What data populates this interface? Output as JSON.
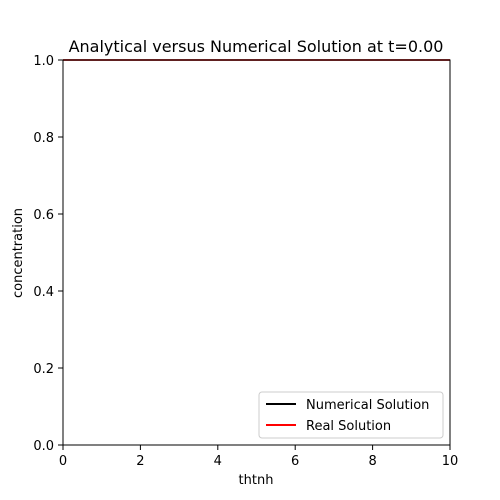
{
  "chart_data": {
    "type": "line",
    "title": "Analytical versus Numerical Solution at t=0.00",
    "xlabel": "thtnh",
    "ylabel": "concentration",
    "xlim": [
      0,
      10
    ],
    "ylim": [
      0,
      1
    ],
    "xticks": [
      0,
      2,
      4,
      6,
      8,
      10
    ],
    "xtick_labels": [
      "0",
      "2",
      "4",
      "6",
      "8",
      "10"
    ],
    "yticks": [
      0,
      0.2,
      0.4,
      0.6,
      0.8,
      1.0
    ],
    "ytick_labels": [
      "0.0",
      "0.2",
      "0.4",
      "0.6",
      "0.8",
      "1.0"
    ],
    "grid": false,
    "legend_position": "lower-right",
    "series": [
      {
        "name": "Numerical Solution",
        "color": "#000000",
        "x": [
          0,
          10
        ],
        "y": [
          1.0,
          1.0
        ]
      },
      {
        "name": "Real Solution",
        "color": "#ff0000",
        "x": [
          0,
          10
        ],
        "y": [
          1.0,
          1.0
        ]
      }
    ]
  }
}
